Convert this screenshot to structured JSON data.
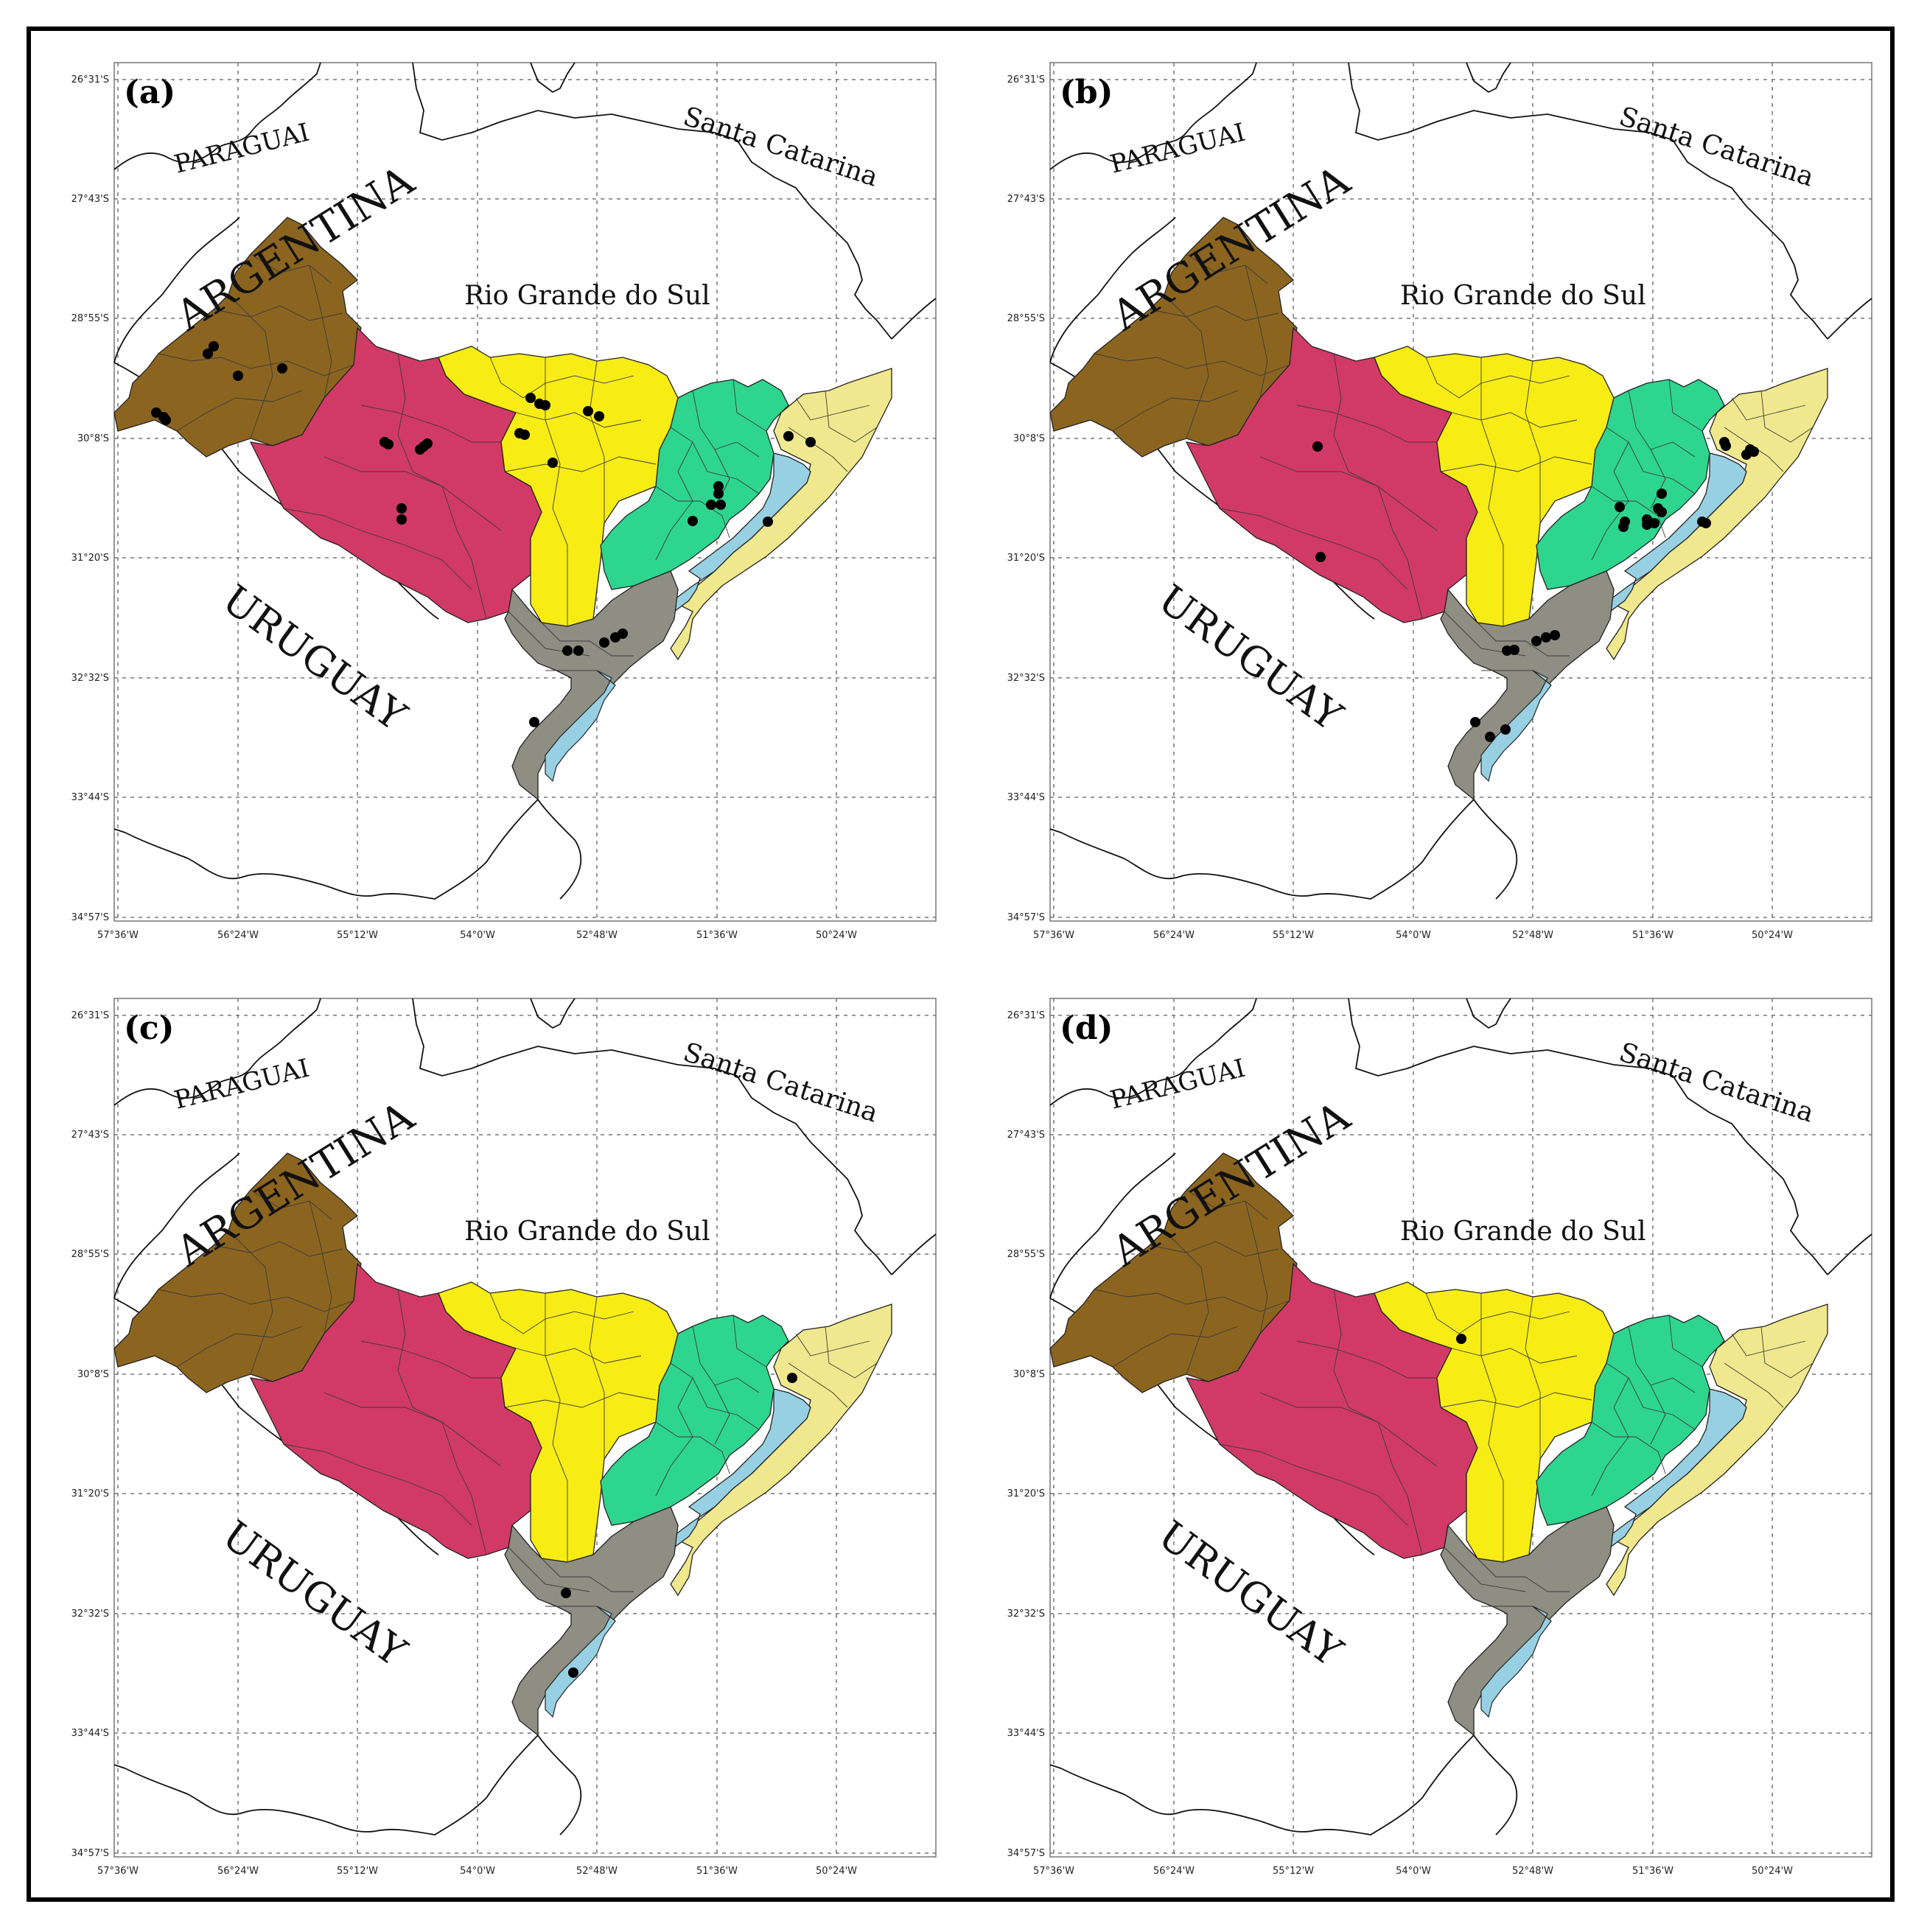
{
  "figure": {
    "panels": [
      {
        "letter": "(a)"
      },
      {
        "letter": "(b)"
      },
      {
        "letter": "(c)"
      },
      {
        "letter": "(d)"
      }
    ],
    "place_labels": {
      "paraguai": "PARAGUAI",
      "argentina": "ARGENTINA",
      "santa_catarina": "Santa Catarina",
      "rio_grande_do_sul": "Rio Grande do Sul",
      "uruguay": "URUGUAY"
    },
    "lat_ticks": [
      "26°31'S",
      "27°43'S",
      "28°55'S",
      "30°8'S",
      "31°20'S",
      "32°32'S",
      "33°44'S",
      "34°57'S"
    ],
    "lon_ticks": [
      "57°36'W",
      "56°24'W",
      "55°12'W",
      "54°0'W",
      "52°48'W",
      "51°36'W",
      "50°24'W"
    ],
    "region_colors": {
      "west": "#8B6520",
      "southwest": "#D13A66",
      "central": "#F7EC14",
      "east_central": "#2ED58E",
      "lagoon": "#97D0E3",
      "coast": "#F0E88E",
      "south": "#8E8E82"
    }
  }
}
